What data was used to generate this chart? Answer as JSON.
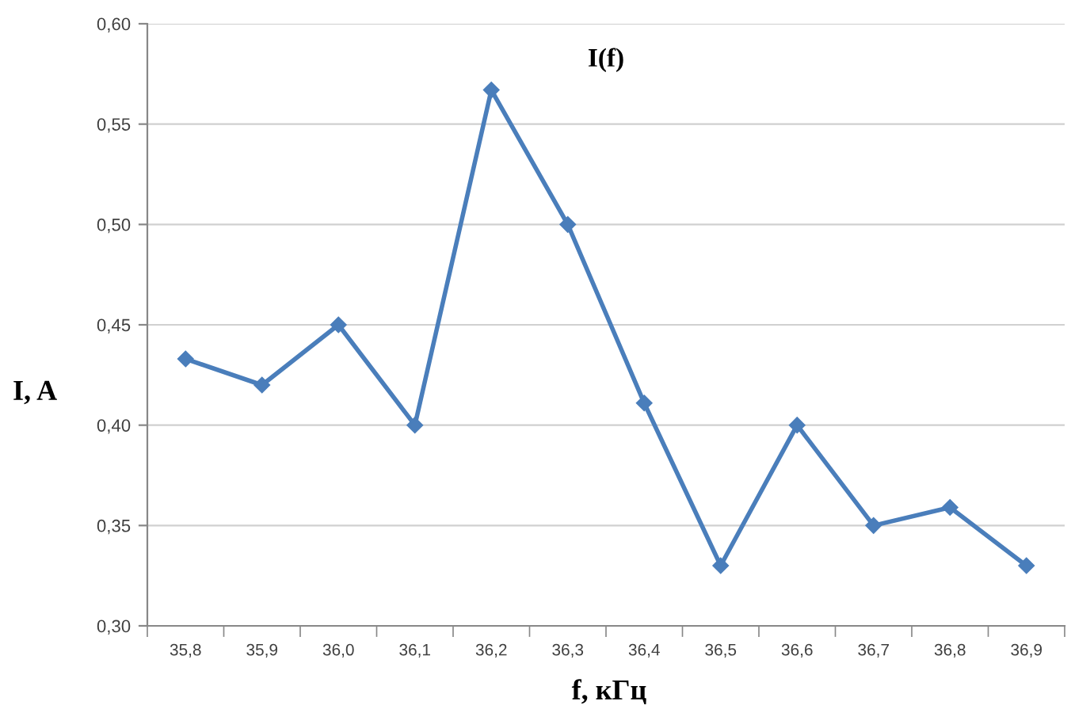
{
  "chart_data": {
    "type": "line",
    "title": "I(f)",
    "xlabel": "f, кГц",
    "ylabel": "I, A",
    "categories": [
      "35,8",
      "35,9",
      "36,0",
      "36,1",
      "36,2",
      "36,3",
      "36,4",
      "36,5",
      "36,6",
      "36,7",
      "36,8",
      "36,9"
    ],
    "series": [
      {
        "color": "#4a7ebb",
        "values": [
          0.433,
          0.42,
          0.45,
          0.4,
          0.567,
          0.5,
          0.411,
          0.33,
          0.4,
          0.35,
          0.359,
          0.33
        ]
      }
    ],
    "ylim": [
      0.3,
      0.6
    ],
    "yticks": [
      {
        "value": 0.3,
        "label": "0,30"
      },
      {
        "value": 0.35,
        "label": "0,35"
      },
      {
        "value": 0.4,
        "label": "0,40"
      },
      {
        "value": 0.45,
        "label": "0,45"
      },
      {
        "value": 0.5,
        "label": "0,50"
      },
      {
        "value": 0.55,
        "label": "0,55"
      },
      {
        "value": 0.6,
        "label": "0,60"
      }
    ],
    "grid": "y",
    "marker": "diamond",
    "line_style": "solid"
  }
}
